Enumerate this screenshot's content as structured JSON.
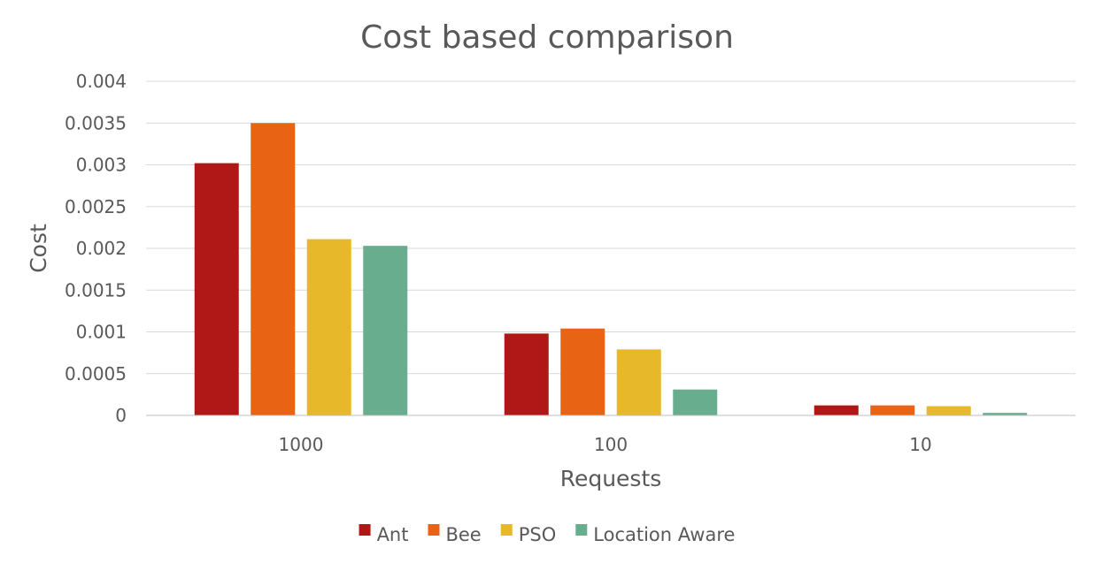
{
  "chart_data": {
    "type": "bar",
    "title": "Cost based comparison",
    "xlabel": "Requests",
    "ylabel": "Cost",
    "categories": [
      "1000",
      "100",
      "10"
    ],
    "series": [
      {
        "name": "Ant",
        "color": "#B01717",
        "values": [
          0.00302,
          0.00098,
          0.00012
        ]
      },
      {
        "name": "Bee",
        "color": "#E86414",
        "values": [
          0.0035,
          0.00104,
          0.00012
        ]
      },
      {
        "name": "PSO",
        "color": "#E6B82A",
        "values": [
          0.00211,
          0.00079,
          0.00011
        ]
      },
      {
        "name": "Location Aware",
        "color": "#68AD8E",
        "values": [
          0.00203,
          0.00031,
          3e-05
        ]
      }
    ],
    "ylim": [
      0,
      0.004
    ],
    "yticks": [
      "0",
      "0.0005",
      "0.001",
      "0.0015",
      "0.002",
      "0.0025",
      "0.003",
      "0.0035",
      "0.004"
    ],
    "grid": true,
    "legend_position": "bottom"
  }
}
